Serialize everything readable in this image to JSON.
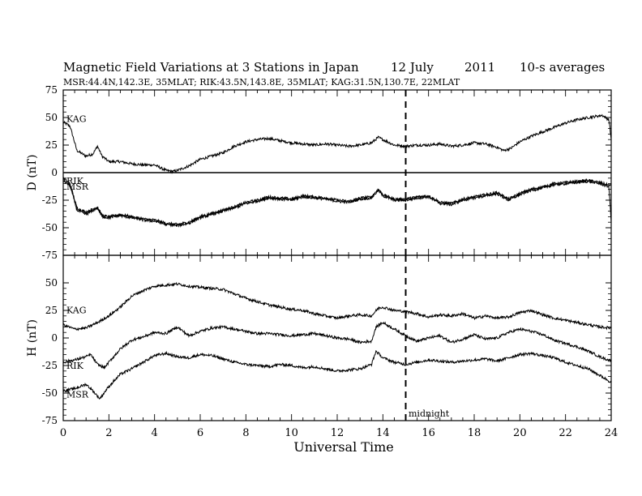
{
  "header": {
    "title": "Magnetic Field Variations at 3 Stations in Japan",
    "date": "12 July",
    "year": "2011",
    "averaging": "10-s averages",
    "stations": "MSR:44.4N,142.3E, 35MLAT;  RIK:43.5N,143.8E, 35MLAT;  KAG:31.5N,130.7E, 22MLAT"
  },
  "chart_data": [
    {
      "type": "line",
      "panel": "D",
      "ylabel": "D (nT)",
      "ylim": [
        -75,
        75
      ],
      "yticks": [
        "75",
        "50",
        "25",
        "0",
        "-25",
        "-50",
        "-75"
      ],
      "xlim": [
        0,
        24
      ],
      "zero_line": true,
      "series": [
        {
          "name": "KAG",
          "x": [
            0,
            0.3,
            0.6,
            1,
            1.3,
            1.5,
            1.7,
            2,
            2.5,
            3,
            3.5,
            4,
            4.5,
            4.8,
            5,
            5.5,
            6,
            6.5,
            7,
            7.5,
            8,
            8.5,
            9,
            9.5,
            10,
            10.5,
            11,
            11.5,
            12,
            12.5,
            13,
            13.5,
            13.8,
            14,
            14.5,
            15,
            15.5,
            16,
            16.5,
            17,
            17.5,
            18,
            18.5,
            19,
            19.3,
            19.6,
            20,
            20.5,
            21,
            21.5,
            22,
            22.5,
            23,
            23.3,
            23.6,
            23.9,
            24
          ],
          "y": [
            46,
            42,
            20,
            15,
            17,
            24,
            15,
            10,
            10,
            8,
            7,
            7,
            2,
            1,
            2,
            6,
            12,
            15,
            18,
            24,
            28,
            30,
            31,
            29,
            27,
            26,
            25,
            26,
            25,
            24,
            25,
            27,
            32,
            30,
            25,
            24,
            25,
            25,
            26,
            24,
            25,
            27,
            26,
            23,
            20,
            22,
            28,
            33,
            37,
            41,
            45,
            48,
            50,
            51,
            52,
            48,
            30
          ]
        },
        {
          "name": "RIK",
          "x": [
            0,
            0.3,
            0.6,
            1,
            1.5,
            1.7,
            2,
            2.5,
            3,
            3.5,
            4,
            4.5,
            5,
            5.5,
            6,
            6.5,
            7,
            7.5,
            8,
            8.5,
            9,
            9.5,
            10,
            10.5,
            11,
            11.5,
            12,
            12.5,
            13,
            13.5,
            13.8,
            14,
            14.5,
            15,
            15.5,
            16,
            16.5,
            17,
            17.5,
            18,
            18.5,
            19,
            19.5,
            20,
            20.5,
            21,
            21.5,
            22,
            22.5,
            23,
            23.5,
            24
          ],
          "y": [
            -5,
            -10,
            -32,
            -36,
            -31,
            -39,
            -40,
            -38,
            -40,
            -42,
            -43,
            -46,
            -47,
            -45,
            -40,
            -37,
            -34,
            -31,
            -27,
            -25,
            -22,
            -23,
            -24,
            -21,
            -22,
            -23,
            -25,
            -26,
            -23,
            -22,
            -15,
            -20,
            -24,
            -24,
            -22,
            -21,
            -27,
            -28,
            -24,
            -22,
            -20,
            -18,
            -24,
            -19,
            -15,
            -13,
            -10,
            -9,
            -8,
            -7,
            -9,
            -12
          ]
        },
        {
          "name": "MSR",
          "x": [
            0,
            0.3,
            0.6,
            1,
            1.5,
            1.7,
            2,
            2.5,
            3,
            3.5,
            4,
            4.5,
            5,
            5.5,
            6,
            6.5,
            7,
            7.5,
            8,
            8.5,
            9,
            9.5,
            10,
            10.5,
            11,
            11.5,
            12,
            12.5,
            13,
            13.5,
            13.8,
            14,
            14.5,
            15,
            15.5,
            16,
            16.5,
            17,
            17.5,
            18,
            18.5,
            19,
            19.5,
            20,
            20.5,
            21,
            21.5,
            22,
            22.5,
            23,
            23.5,
            23.9,
            24
          ],
          "y": [
            -7,
            -12,
            -34,
            -38,
            -32,
            -40,
            -41,
            -39,
            -41,
            -43,
            -44,
            -47,
            -48,
            -46,
            -41,
            -38,
            -35,
            -32,
            -28,
            -26,
            -23,
            -24,
            -25,
            -22,
            -23,
            -24,
            -26,
            -27,
            -24,
            -23,
            -16,
            -21,
            -25,
            -25,
            -23,
            -22,
            -28,
            -29,
            -25,
            -23,
            -21,
            -19,
            -25,
            -20,
            -16,
            -14,
            -11,
            -10,
            -9,
            -8,
            -10,
            -13,
            -45
          ]
        }
      ]
    },
    {
      "type": "line",
      "panel": "H",
      "ylabel": "H (nT)",
      "xlabel": "Universal Time",
      "ylim": [
        -75,
        75
      ],
      "yticks": [
        "50",
        "25",
        "0",
        "-25",
        "-50",
        "-75"
      ],
      "xlim": [
        0,
        24
      ],
      "xticks": [
        "0",
        "2",
        "4",
        "6",
        "8",
        "10",
        "12",
        "14",
        "16",
        "18",
        "20",
        "22",
        "24"
      ],
      "series": [
        {
          "name": "KAG",
          "x": [
            0,
            0.5,
            1,
            1.5,
            2,
            2.5,
            3,
            3.5,
            4,
            4.5,
            5,
            5.5,
            6,
            6.5,
            7,
            7.5,
            8,
            8.5,
            9,
            9.5,
            10,
            10.5,
            11,
            11.5,
            12,
            12.5,
            13,
            13.5,
            13.8,
            14,
            14.5,
            15,
            15.5,
            16,
            16.5,
            17,
            17.5,
            18,
            18.5,
            19,
            19.5,
            20,
            20.5,
            21,
            21.5,
            22,
            22.5,
            23,
            23.5,
            24
          ],
          "y": [
            12,
            8,
            9,
            14,
            20,
            28,
            38,
            43,
            47,
            48,
            49,
            47,
            46,
            45,
            44,
            40,
            36,
            33,
            30,
            28,
            26,
            25,
            22,
            20,
            18,
            20,
            21,
            20,
            27,
            28,
            25,
            24,
            22,
            19,
            21,
            20,
            22,
            18,
            20,
            18,
            19,
            23,
            25,
            21,
            18,
            16,
            14,
            12,
            10,
            9
          ]
        },
        {
          "name": "RIK",
          "x": [
            0,
            0.5,
            1,
            1.2,
            1.5,
            1.8,
            2,
            2.5,
            3,
            3.5,
            4,
            4.5,
            5,
            5.5,
            6,
            6.5,
            7,
            7.5,
            8,
            8.5,
            9,
            9.5,
            10,
            10.5,
            11,
            11.5,
            12,
            12.5,
            13,
            13.5,
            13.7,
            14,
            14.5,
            15,
            15.5,
            16,
            16.5,
            17,
            17.5,
            18,
            18.5,
            19,
            19.5,
            20,
            20.5,
            21,
            21.5,
            22,
            22.5,
            23,
            23.5,
            24
          ],
          "y": [
            -22,
            -20,
            -17,
            -15,
            -24,
            -27,
            -22,
            -10,
            -2,
            1,
            5,
            4,
            10,
            2,
            6,
            9,
            10,
            8,
            6,
            4,
            4,
            3,
            2,
            3,
            4,
            2,
            0,
            -1,
            -4,
            -3,
            10,
            14,
            8,
            2,
            -3,
            0,
            2,
            -4,
            -1,
            3,
            -1,
            0,
            5,
            8,
            6,
            3,
            -2,
            -5,
            -8,
            -12,
            -17,
            -21
          ]
        },
        {
          "name": "MSR",
          "x": [
            0,
            0.5,
            1,
            1.3,
            1.6,
            2,
            2.5,
            3,
            3.5,
            4,
            4.5,
            5,
            5.5,
            6,
            6.5,
            7,
            7.5,
            8,
            8.5,
            9,
            9.5,
            10,
            10.5,
            11,
            11.5,
            12,
            12.5,
            13,
            13.5,
            13.7,
            14,
            14.5,
            15,
            15.5,
            16,
            16.5,
            17,
            17.5,
            18,
            18.5,
            19,
            19.5,
            20,
            20.5,
            21,
            21.5,
            22,
            22.5,
            23,
            23.5,
            24
          ],
          "y": [
            -48,
            -46,
            -42,
            -48,
            -55,
            -44,
            -33,
            -28,
            -22,
            -16,
            -14,
            -17,
            -18,
            -15,
            -16,
            -19,
            -22,
            -24,
            -25,
            -26,
            -24,
            -25,
            -27,
            -26,
            -28,
            -30,
            -29,
            -28,
            -24,
            -12,
            -18,
            -22,
            -24,
            -22,
            -20,
            -21,
            -22,
            -21,
            -20,
            -19,
            -21,
            -18,
            -15,
            -14,
            -16,
            -18,
            -22,
            -25,
            -28,
            -34,
            -40
          ]
        }
      ]
    }
  ],
  "annotation": "midnight",
  "midnight_ut": 15
}
